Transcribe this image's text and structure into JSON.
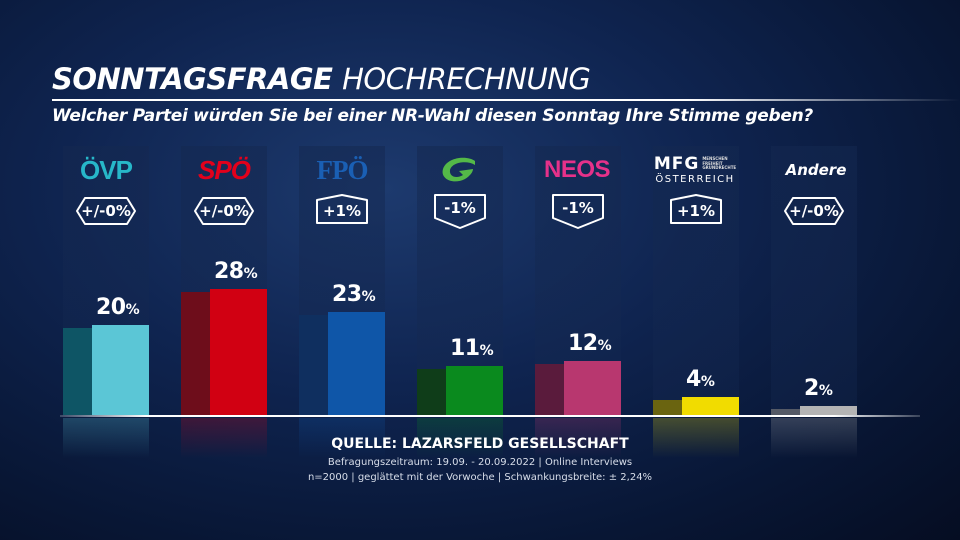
{
  "header": {
    "title_bold": "SONNTAGSFRAGE",
    "title_light": "HOCHRECHNUNG",
    "question": "Welcher Partei würden Sie bei einer NR-Wahl diesen Sonntag Ihre Stimme geben?"
  },
  "chart_data": {
    "type": "bar",
    "categories": [
      "ÖVP",
      "SPÖ",
      "FPÖ",
      "GRÜNE",
      "NEOS",
      "MFG",
      "Andere"
    ],
    "values": [
      20,
      28,
      23,
      11,
      12,
      4,
      2
    ],
    "value_suffix": "%",
    "changes": [
      "+/-0%",
      "+/-0%",
      "+1%",
      "-1%",
      "-1%",
      "+1%",
      "+/-0%"
    ],
    "change_direction": [
      "none",
      "none",
      "up",
      "down",
      "down",
      "up",
      "none"
    ],
    "colors": [
      "#5bc6d6",
      "#d10012",
      "#0f56a8",
      "#0a8a1e",
      "#b8376f",
      "#f1dc00",
      "#b4b4b4"
    ],
    "side_colors": [
      "#0e5565",
      "#6e0d1b",
      "#0f2f5f",
      "#0f3d19",
      "#5a1b3c",
      "#6a6410",
      "#555a66"
    ],
    "ylim": [
      0,
      30
    ],
    "grid": false,
    "legend": "none"
  },
  "logos": {
    "oevp": "ÖVP",
    "spoe": "SPÖ",
    "fpoe": "FPÖ",
    "mfg_main": "MFG",
    "mfg_sub": "ÖSTERREICH",
    "mfg_small_1": "MENSCHEN",
    "mfg_small_2": "FREIHEIT",
    "mfg_small_3": "GRUNDRECHTE",
    "neos": "NEOS",
    "andere": "Andere"
  },
  "logo_icons": {
    "gruene": "green-swoosh-icon"
  },
  "footer": {
    "source": "QUELLE:  LAZARSFELD GESELLSCHAFT",
    "line1": "Befragungszeitraum: 19.09. - 20.09.2022 | Online Interviews",
    "line2": "n=2000 | geglättet mit der Vorwoche |  Schwankungsbreite: ± 2,24%"
  }
}
